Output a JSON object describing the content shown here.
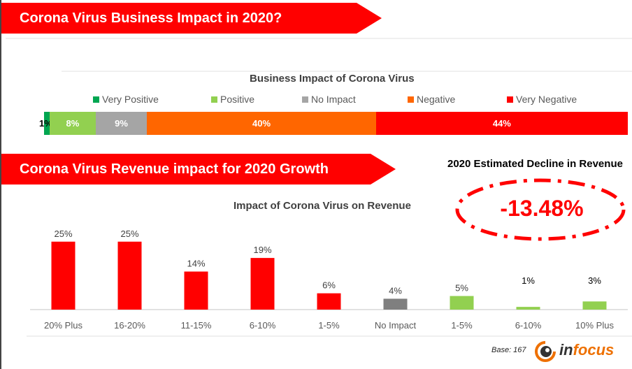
{
  "banners": {
    "top": "Corona Virus Business Impact in 2020?",
    "bottom": "Corona Virus  Revenue impact  for 2020 Growth"
  },
  "decline": {
    "title": "2020 Estimated Decline in Revenue",
    "value": "-13.48%"
  },
  "footer": {
    "base": "Base: 167",
    "brand_prefix": "in",
    "brand_suffix": "focus"
  },
  "colors": {
    "accent_red": "#ff0000",
    "very_positive": "#00a651",
    "positive": "#92d050",
    "no_impact": "#a5a5a5",
    "negative": "#ff6600",
    "very_negative": "#ff0000",
    "neutral_bar": "#7f7f7f"
  },
  "chart_data": [
    {
      "type": "bar",
      "orientation": "horizontal-stacked-100",
      "title": "Business Impact of Corona Virus",
      "legend_position": "top",
      "series": [
        {
          "name": "Very Positive",
          "value": 1,
          "label": "1%",
          "color": "#00a651"
        },
        {
          "name": "Positive",
          "value": 8,
          "label": "8%",
          "color": "#92d050"
        },
        {
          "name": "No Impact",
          "value": 9,
          "label": "9%",
          "color": "#a5a5a5"
        },
        {
          "name": "Negative",
          "value": 40,
          "label": "40%",
          "color": "#ff6600"
        },
        {
          "name": "Very Negative",
          "value": 44,
          "label": "44%",
          "color": "#ff0000"
        }
      ]
    },
    {
      "type": "bar",
      "title": "Impact of Corona Virus on Revenue",
      "xlabel": "",
      "ylabel": "",
      "ylim": [
        0,
        27
      ],
      "grid": false,
      "categories": [
        "20% Plus",
        "16-20%",
        "11-15%",
        "6-10%",
        "1-5%",
        "No Impact",
        "1-5%",
        "6-10%",
        "10% Plus"
      ],
      "values": [
        25,
        25,
        14,
        19,
        6,
        4,
        5,
        1,
        3
      ],
      "labels": [
        "25%",
        "25%",
        "14%",
        "19%",
        "6%",
        "4%",
        "5%",
        "1%",
        "3%"
      ],
      "colors": [
        "#ff0000",
        "#ff0000",
        "#ff0000",
        "#ff0000",
        "#ff0000",
        "#7f7f7f",
        "#92d050",
        "#92d050",
        "#92d050"
      ]
    }
  ]
}
